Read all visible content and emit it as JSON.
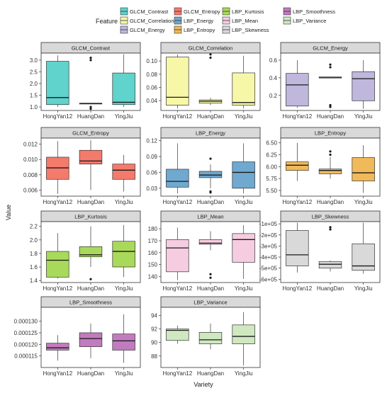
{
  "legend": {
    "title": "Feature",
    "items": [
      {
        "name": "GLCM_Contrast",
        "color": "#5fd3cc"
      },
      {
        "name": "GLCM_Correlation",
        "color": "#f7f7a8"
      },
      {
        "name": "GLCM_Energy",
        "color": "#bfb7dc"
      },
      {
        "name": "GLCM_Entropy",
        "color": "#f47a6c"
      },
      {
        "name": "LBP_Energy",
        "color": "#6fa9d0"
      },
      {
        "name": "LBP_Entropy",
        "color": "#f0b95a"
      },
      {
        "name": "LBP_Kurtosis",
        "color": "#a9d95a"
      },
      {
        "name": "LBP_Mean",
        "color": "#f6cde0"
      },
      {
        "name": "LBP_Skewness",
        "color": "#d9d9d9"
      },
      {
        "name": "LBP_Smoothness",
        "color": "#c27bbf"
      },
      {
        "name": "LBP_Variance",
        "color": "#cfe8c0"
      }
    ]
  },
  "axes": {
    "xlabel": "Variety",
    "ylabel": "Value"
  },
  "chart_data": [
    {
      "type": "box",
      "title": "GLCM_Contrast",
      "color": "#5fd3cc",
      "categories": [
        "HongYan12",
        "HuangDan",
        "YingJiu"
      ],
      "ylim": [
        0.85,
        3.3
      ],
      "yticks": [
        {
          "v": 1.0,
          "label": "1.0"
        },
        {
          "v": 1.5,
          "label": "1.5"
        },
        {
          "v": 2.0,
          "label": "2.0"
        },
        {
          "v": 2.5,
          "label": "2.5"
        },
        {
          "v": 3.0,
          "label": "3.0"
        }
      ],
      "boxes": [
        {
          "min": 1.0,
          "q1": 1.1,
          "median": 1.4,
          "q3": 2.95,
          "max": 3.2,
          "outliers": []
        },
        {
          "min": 1.15,
          "q1": 1.15,
          "median": 1.15,
          "q3": 1.15,
          "max": 1.15,
          "outliers": [
            3.1,
            3.0,
            1.0,
            0.92
          ]
        },
        {
          "min": 1.0,
          "q1": 1.1,
          "median": 1.2,
          "q3": 2.45,
          "max": 3.25,
          "outliers": []
        }
      ]
    },
    {
      "type": "box",
      "title": "GLCM_Correlation",
      "color": "#f7f7a8",
      "categories": [
        "HongYan12",
        "HuangDan",
        "YingJiu"
      ],
      "ylim": [
        0.025,
        0.112
      ],
      "yticks": [
        {
          "v": 0.04,
          "label": "0.04"
        },
        {
          "v": 0.06,
          "label": "0.06"
        },
        {
          "v": 0.08,
          "label": "0.08"
        },
        {
          "v": 0.1,
          "label": "0.10"
        }
      ],
      "boxes": [
        {
          "min": 0.028,
          "q1": 0.033,
          "median": 0.045,
          "q3": 0.106,
          "max": 0.11,
          "outliers": []
        },
        {
          "min": 0.033,
          "q1": 0.036,
          "median": 0.039,
          "q3": 0.041,
          "max": 0.044,
          "outliers": [
            0.11,
            0.105
          ]
        },
        {
          "min": 0.028,
          "q1": 0.033,
          "median": 0.037,
          "q3": 0.082,
          "max": 0.108,
          "outliers": []
        }
      ]
    },
    {
      "type": "box",
      "title": "GLCM_Energy",
      "color": "#bfb7dc",
      "categories": [
        "HongYan12",
        "HuangDan",
        "YingJiu"
      ],
      "ylim": [
        0.03,
        0.68
      ],
      "yticks": [
        {
          "v": 0.2,
          "label": "0.2"
        },
        {
          "v": 0.4,
          "label": "0.4"
        },
        {
          "v": 0.6,
          "label": "0.6"
        }
      ],
      "boxes": [
        {
          "min": 0.06,
          "q1": 0.08,
          "median": 0.32,
          "q3": 0.45,
          "max": 0.6,
          "outliers": []
        },
        {
          "min": 0.4,
          "q1": 0.4,
          "median": 0.4,
          "q3": 0.41,
          "max": 0.41,
          "outliers": [
            0.55,
            0.52,
            0.09,
            0.07
          ]
        },
        {
          "min": 0.05,
          "q1": 0.14,
          "median": 0.39,
          "q3": 0.47,
          "max": 0.6,
          "outliers": []
        }
      ]
    },
    {
      "type": "box",
      "title": "GLCM_Entropy",
      "color": "#f47a6c",
      "categories": [
        "HongYan12",
        "HuangDan",
        "YingJiu"
      ],
      "ylim": [
        0.0052,
        0.0128
      ],
      "yticks": [
        {
          "v": 0.006,
          "label": "0.006"
        },
        {
          "v": 0.008,
          "label": "0.008"
        },
        {
          "v": 0.01,
          "label": "0.010"
        },
        {
          "v": 0.012,
          "label": "0.012"
        }
      ],
      "boxes": [
        {
          "min": 0.0055,
          "q1": 0.0074,
          "median": 0.0089,
          "q3": 0.0103,
          "max": 0.0124,
          "outliers": []
        },
        {
          "min": 0.006,
          "q1": 0.0094,
          "median": 0.0098,
          "q3": 0.0112,
          "max": 0.0125,
          "outliers": []
        },
        {
          "min": 0.0058,
          "q1": 0.0074,
          "median": 0.0086,
          "q3": 0.0094,
          "max": 0.0106,
          "outliers": []
        }
      ]
    },
    {
      "type": "box",
      "title": "LBP_Energy",
      "color": "#6fa9d0",
      "categories": [
        "HongYan12",
        "HuangDan",
        "YingJiu"
      ],
      "ylim": [
        0.015,
        0.125
      ],
      "yticks": [
        {
          "v": 0.03,
          "label": "0.03"
        },
        {
          "v": 0.06,
          "label": "0.06"
        },
        {
          "v": 0.09,
          "label": "0.09"
        },
        {
          "v": 0.12,
          "label": "0.12"
        }
      ],
      "boxes": [
        {
          "min": 0.02,
          "q1": 0.032,
          "median": 0.043,
          "q3": 0.066,
          "max": 0.115,
          "outliers": []
        },
        {
          "min": 0.03,
          "q1": 0.05,
          "median": 0.055,
          "q3": 0.062,
          "max": 0.075,
          "outliers": [
            0.086,
            0.024,
            0.022
          ]
        },
        {
          "min": 0.02,
          "q1": 0.03,
          "median": 0.06,
          "q3": 0.08,
          "max": 0.115,
          "outliers": []
        }
      ]
    },
    {
      "type": "box",
      "title": "LBP_Entropy",
      "color": "#f0b95a",
      "categories": [
        "HongYan12",
        "HuangDan",
        "YingJiu"
      ],
      "ylim": [
        5.38,
        6.6
      ],
      "yticks": [
        {
          "v": 5.5,
          "label": "5.50"
        },
        {
          "v": 5.75,
          "label": "5.75"
        },
        {
          "v": 6.0,
          "label": "6.00"
        },
        {
          "v": 6.25,
          "label": "6.25"
        },
        {
          "v": 6.5,
          "label": "6.50"
        }
      ],
      "boxes": [
        {
          "min": 5.7,
          "q1": 5.92,
          "median": 6.03,
          "q3": 6.1,
          "max": 6.5,
          "outliers": []
        },
        {
          "min": 5.75,
          "q1": 5.85,
          "median": 5.92,
          "q3": 5.95,
          "max": 6.2,
          "outliers": [
            6.32,
            6.25
          ]
        },
        {
          "min": 5.45,
          "q1": 5.7,
          "median": 5.87,
          "q3": 6.19,
          "max": 6.45,
          "outliers": []
        }
      ]
    },
    {
      "type": "box",
      "title": "LBP_Kurtosis",
      "color": "#a9d95a",
      "categories": [
        "HongYan12",
        "HuangDan",
        "YingJiu"
      ],
      "ylim": [
        1.37,
        2.27
      ],
      "yticks": [
        {
          "v": 1.4,
          "label": "1.4"
        },
        {
          "v": 1.6,
          "label": "1.6"
        },
        {
          "v": 1.8,
          "label": "1.8"
        },
        {
          "v": 2.0,
          "label": "2.0"
        },
        {
          "v": 2.2,
          "label": "2.2"
        }
      ],
      "boxes": [
        {
          "min": 1.43,
          "q1": 1.45,
          "median": 1.7,
          "q3": 1.83,
          "max": 2.1,
          "outliers": []
        },
        {
          "min": 1.6,
          "q1": 1.75,
          "median": 1.78,
          "q3": 1.9,
          "max": 2.2,
          "outliers": [
            1.42
          ]
        },
        {
          "min": 1.45,
          "q1": 1.6,
          "median": 1.83,
          "q3": 1.98,
          "max": 2.22,
          "outliers": []
        }
      ]
    },
    {
      "type": "box",
      "title": "LBP_Mean",
      "color": "#f6cde0",
      "categories": [
        "HongYan12",
        "HuangDan",
        "YingJiu"
      ],
      "ylim": [
        135,
        186
      ],
      "yticks": [
        {
          "v": 140,
          "label": "140"
        },
        {
          "v": 150,
          "label": "150"
        },
        {
          "v": 160,
          "label": "160"
        },
        {
          "v": 170,
          "label": "170"
        },
        {
          "v": 180,
          "label": "180"
        }
      ],
      "boxes": [
        {
          "min": 137,
          "q1": 144,
          "median": 164,
          "q3": 171,
          "max": 181,
          "outliers": []
        },
        {
          "min": 162,
          "q1": 167,
          "median": 168,
          "q3": 171,
          "max": 178,
          "outliers": [
            142,
            139
          ]
        },
        {
          "min": 138,
          "q1": 152,
          "median": 171,
          "q3": 176,
          "max": 183,
          "outliers": []
        }
      ]
    },
    {
      "type": "box",
      "title": "LBP_Skewness",
      "color": "#d9d9d9",
      "categories": [
        "HongYan12",
        "HuangDan",
        "YingJiu"
      ],
      "ylim": [
        -630000,
        -80000
      ],
      "yticks": [
        {
          "v": -100000,
          "label": "-1e+05"
        },
        {
          "v": -200000,
          "label": "-2e+05"
        },
        {
          "v": -300000,
          "label": "-3e+05"
        },
        {
          "v": -400000,
          "label": "-4e+05"
        },
        {
          "v": -500000,
          "label": "-5e+05"
        },
        {
          "v": -600000,
          "label": "-6e+05"
        }
      ],
      "boxes": [
        {
          "min": -540000,
          "q1": -480000,
          "median": -380000,
          "q3": -160000,
          "max": -90000,
          "outliers": []
        },
        {
          "min": -530000,
          "q1": -500000,
          "median": -465000,
          "q3": -440000,
          "max": -430000,
          "outliers": [
            -130000,
            -150000
          ]
        },
        {
          "min": -550000,
          "q1": -520000,
          "median": -480000,
          "q3": -280000,
          "max": -90000,
          "outliers": []
        }
      ]
    },
    {
      "type": "box",
      "title": "LBP_Smoothness",
      "color": "#c27bbf",
      "categories": [
        "HongYan12",
        "HuangDan",
        "YingJiu"
      ],
      "ylim": [
        0.00011,
        0.000136
      ],
      "yticks": [
        {
          "v": 0.000115,
          "label": "0.000115"
        },
        {
          "v": 0.00012,
          "label": "0.000120"
        },
        {
          "v": 0.000125,
          "label": "0.000125"
        },
        {
          "v": 0.00013,
          "label": "0.000130"
        }
      ],
      "boxes": [
        {
          "min": 0.000113,
          "q1": 0.0001175,
          "median": 0.0001185,
          "q3": 0.0001205,
          "max": 0.000124,
          "outliers": []
        },
        {
          "min": 0.000114,
          "q1": 0.000119,
          "median": 0.0001225,
          "q3": 0.000125,
          "max": 0.000129,
          "outliers": []
        },
        {
          "min": 0.000112,
          "q1": 0.0001175,
          "median": 0.0001215,
          "q3": 0.0001245,
          "max": 0.000133,
          "outliers": []
        }
      ]
    },
    {
      "type": "box",
      "title": "LBP_Variance",
      "color": "#cfe8c0",
      "categories": [
        "HongYan12",
        "HuangDan",
        "YingJiu"
      ],
      "ylim": [
        86.3,
        95.2
      ],
      "yticks": [
        {
          "v": 88,
          "label": "88"
        },
        {
          "v": 90,
          "label": "90"
        },
        {
          "v": 92,
          "label": "92"
        },
        {
          "v": 94,
          "label": "94"
        }
      ],
      "boxes": [
        {
          "min": 89.8,
          "q1": 90.3,
          "median": 91.8,
          "q3": 92.0,
          "max": 92.5,
          "outliers": []
        },
        {
          "min": 89.0,
          "q1": 89.8,
          "median": 90.4,
          "q3": 91.5,
          "max": 92.8,
          "outliers": []
        },
        {
          "min": 86.6,
          "q1": 89.8,
          "median": 90.9,
          "q3": 92.6,
          "max": 94.5,
          "outliers": []
        }
      ]
    }
  ]
}
